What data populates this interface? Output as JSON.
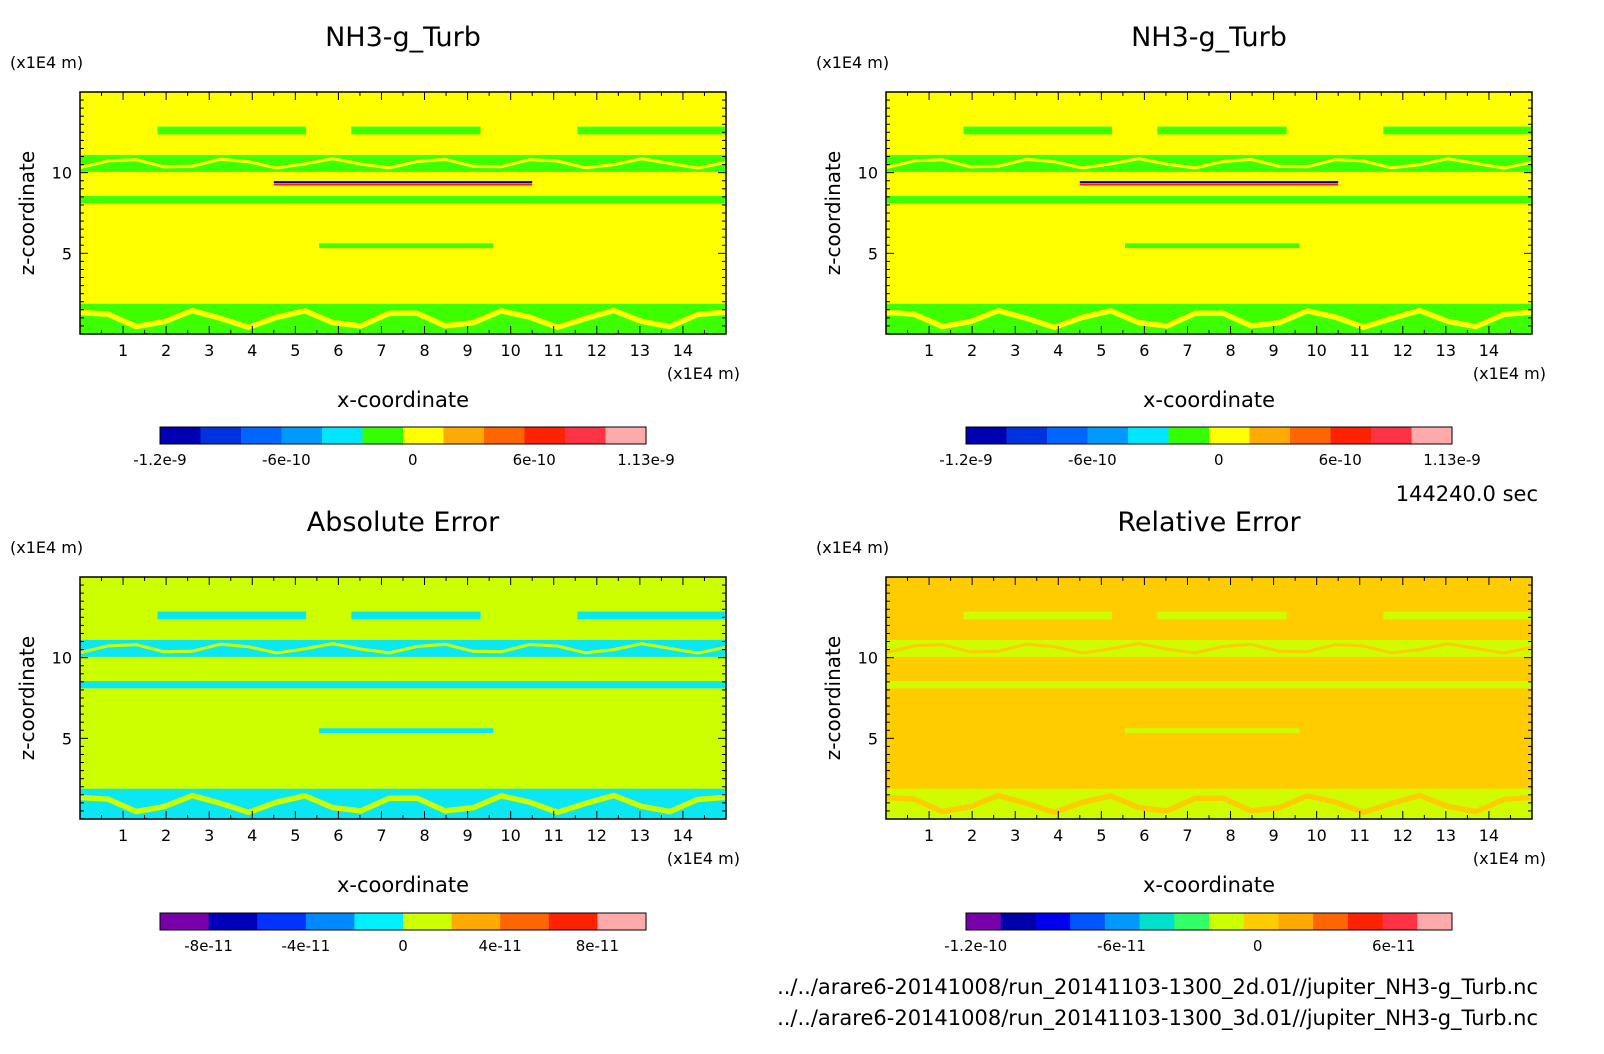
{
  "chart_data": [
    {
      "type": "heatmap",
      "title": "NH3-g_Turb",
      "xlabel": "x-coordinate",
      "ylabel": "z-coordinate",
      "x_unit": "(x1E4 m)",
      "y_unit": "(x1E4 m)",
      "xlim": [
        0,
        15
      ],
      "ylim": [
        0,
        15
      ],
      "xticks": [
        "1",
        "2",
        "3",
        "4",
        "5",
        "6",
        "7",
        "8",
        "9",
        "10",
        "11",
        "12",
        "13",
        "14"
      ],
      "yticks": [
        "5",
        "10"
      ],
      "background_color": "#ffff00",
      "pattern_color": "#33ff00",
      "colorbar": {
        "colors": [
          "#0000b3",
          "#0033dd",
          "#0066ff",
          "#0099ff",
          "#00e6ff",
          "#33ff00",
          "#ffff00",
          "#ffaa00",
          "#ff6600",
          "#ff2200",
          "#ff3344",
          "#ffaaaa"
        ],
        "labels": [
          "-1.2e-9",
          "-6e-10",
          "0",
          "6e-10",
          "1.13e-9"
        ]
      }
    },
    {
      "type": "heatmap",
      "title": "NH3-g_Turb",
      "xlabel": "x-coordinate",
      "ylabel": "z-coordinate",
      "x_unit": "(x1E4 m)",
      "y_unit": "(x1E4 m)",
      "xlim": [
        0,
        15
      ],
      "ylim": [
        0,
        15
      ],
      "xticks": [
        "1",
        "2",
        "3",
        "4",
        "5",
        "6",
        "7",
        "8",
        "9",
        "10",
        "11",
        "12",
        "13",
        "14"
      ],
      "yticks": [
        "5",
        "10"
      ],
      "background_color": "#ffff00",
      "pattern_color": "#33ff00",
      "colorbar": {
        "colors": [
          "#0000b3",
          "#0033dd",
          "#0066ff",
          "#0099ff",
          "#00e6ff",
          "#33ff00",
          "#ffff00",
          "#ffaa00",
          "#ff6600",
          "#ff2200",
          "#ff3344",
          "#ffaaaa"
        ],
        "labels": [
          "-1.2e-9",
          "-6e-10",
          "0",
          "6e-10",
          "1.13e-9"
        ]
      }
    },
    {
      "type": "heatmap",
      "title": "Absolute Error",
      "xlabel": "x-coordinate",
      "ylabel": "z-coordinate",
      "x_unit": "(x1E4 m)",
      "y_unit": "(x1E4 m)",
      "xlim": [
        0,
        15
      ],
      "ylim": [
        0,
        15
      ],
      "xticks": [
        "1",
        "2",
        "3",
        "4",
        "5",
        "6",
        "7",
        "8",
        "9",
        "10",
        "11",
        "12",
        "13",
        "14"
      ],
      "yticks": [
        "5",
        "10"
      ],
      "background_color": "#ccff00",
      "pattern_color": "#00e6ff",
      "colorbar": {
        "colors": [
          "#7700aa",
          "#0000bb",
          "#0033ff",
          "#0088ff",
          "#00f0ff",
          "#ccff00",
          "#ffaa00",
          "#ff6600",
          "#ff2200",
          "#ffaaaa"
        ],
        "labels": [
          "-8e-11",
          "-4e-11",
          "0",
          "4e-11",
          "8e-11"
        ]
      }
    },
    {
      "type": "heatmap",
      "title": "Relative Error",
      "xlabel": "x-coordinate",
      "ylabel": "z-coordinate",
      "x_unit": "(x1E4 m)",
      "y_unit": "(x1E4 m)",
      "xlim": [
        0,
        15
      ],
      "ylim": [
        0,
        15
      ],
      "xticks": [
        "1",
        "2",
        "3",
        "4",
        "5",
        "6",
        "7",
        "8",
        "9",
        "10",
        "11",
        "12",
        "13",
        "14"
      ],
      "yticks": [
        "5",
        "10"
      ],
      "background_color": "#ffcc00",
      "pattern_color": "#ccff00",
      "colorbar": {
        "colors": [
          "#7700aa",
          "#0000aa",
          "#0000ee",
          "#0055ff",
          "#0099ff",
          "#00e0cc",
          "#33ff66",
          "#ccff00",
          "#ffcc00",
          "#ffaa00",
          "#ff6600",
          "#ff2200",
          "#ff3344",
          "#ffaaaa"
        ],
        "labels": [
          "-1.2e-10",
          "-6e-11",
          "0",
          "6e-11"
        ]
      }
    }
  ],
  "time_label": "144240.0 sec",
  "file_paths": [
    "../../arare6-20141008/run_20141103-1300_2d.01//jupiter_NH3-g_Turb.nc",
    "../../arare6-20141008/run_20141103-1300_3d.01//jupiter_NH3-g_Turb.nc"
  ]
}
